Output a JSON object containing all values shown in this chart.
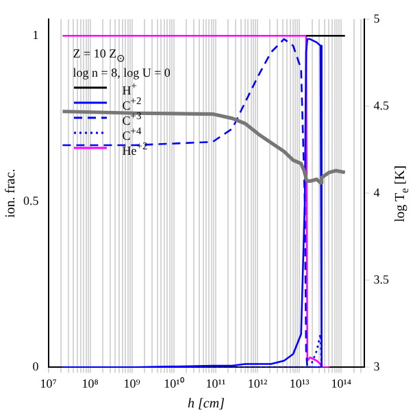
{
  "chart_data": {
    "type": "line",
    "xlabel": "h [cm]",
    "ylabel": "ion. frac.",
    "y2label": "log T$_{e}$ [K]",
    "log": "x",
    "grid": "x",
    "legend": "top left",
    "line_style": "solid",
    "marker": "none",
    "annotations": [
      "Z = 10 Z$_{⊙}$",
      "log n = 8, log U = 0"
    ],
    "x": [
      22000000.0,
      1200000000.0,
      85000000000.0,
      250000000000.0,
      510000000000.0,
      1050000000000.0,
      2100000000000.0,
      4300000000000.0,
      7100000000000.0,
      11000000000000.0,
      13500000000000.0,
      14500000000000.0,
      15500000000000.0,
      18000000000000.0,
      26000000000000.0,
      32000000000000.0,
      34000000000000.0,
      52000000000000.0,
      74000000000000.0,
      123000000000000.0
    ],
    "xlim": [
      10000000.0,
      350000000000000.0
    ],
    "xticks": [
      {
        "value": 10000000.0,
        "label": "10⁷"
      },
      {
        "value": 20000000.0,
        "label": null
      },
      {
        "value": 30000000.0,
        "label": null
      },
      {
        "value": 40000000.0,
        "label": null
      },
      {
        "value": 50000000.0,
        "label": null
      },
      {
        "value": 60000000.0,
        "label": null
      },
      {
        "value": 70000000.0,
        "label": null
      },
      {
        "value": 80000000.0,
        "label": null
      },
      {
        "value": 90000000.0,
        "label": null
      },
      {
        "value": 100000000.0,
        "label": "10⁸"
      },
      {
        "value": 200000000.0,
        "label": null
      },
      {
        "value": 300000000.0,
        "label": null
      },
      {
        "value": 400000000.0,
        "label": null
      },
      {
        "value": 500000000.0,
        "label": null
      },
      {
        "value": 600000000.0,
        "label": null
      },
      {
        "value": 700000000.0,
        "label": null
      },
      {
        "value": 800000000.0,
        "label": null
      },
      {
        "value": 900000000.0,
        "label": null
      },
      {
        "value": 1000000000.0,
        "label": "10⁹"
      },
      {
        "value": 2000000000.0,
        "label": null
      },
      {
        "value": 3000000000.0,
        "label": null
      },
      {
        "value": 4000000000.0,
        "label": null
      },
      {
        "value": 5000000000.0,
        "label": null
      },
      {
        "value": 6000000000.0,
        "label": null
      },
      {
        "value": 7000000000.0,
        "label": null
      },
      {
        "value": 8000000000.0,
        "label": null
      },
      {
        "value": 9000000000.0,
        "label": null
      },
      {
        "value": 10000000000.0,
        "label": "10¹⁰"
      },
      {
        "value": 20000000000.0,
        "label": null
      },
      {
        "value": 30000000000.0,
        "label": null
      },
      {
        "value": 40000000000.0,
        "label": null
      },
      {
        "value": 50000000000.0,
        "label": null
      },
      {
        "value": 60000000000.0,
        "label": null
      },
      {
        "value": 70000000000.0,
        "label": null
      },
      {
        "value": 80000000000.0,
        "label": null
      },
      {
        "value": 90000000000.0,
        "label": null
      },
      {
        "value": 100000000000.0,
        "label": "10¹¹"
      },
      {
        "value": 200000000000.0,
        "label": null
      },
      {
        "value": 300000000000.0,
        "label": null
      },
      {
        "value": 400000000000.0,
        "label": null
      },
      {
        "value": 500000000000.0,
        "label": null
      },
      {
        "value": 600000000000.0,
        "label": null
      },
      {
        "value": 700000000000.0,
        "label": null
      },
      {
        "value": 800000000000.0,
        "label": null
      },
      {
        "value": 900000000000.0,
        "label": null
      },
      {
        "value": 1000000000000.0,
        "label": "10¹²"
      },
      {
        "value": 2000000000000.0,
        "label": null
      },
      {
        "value": 3000000000000.0,
        "label": null
      },
      {
        "value": 4000000000000.0,
        "label": null
      },
      {
        "value": 5000000000000.0,
        "label": null
      },
      {
        "value": 6000000000000.0,
        "label": null
      },
      {
        "value": 7000000000000.0,
        "label": null
      },
      {
        "value": 8000000000000.0,
        "label": null
      },
      {
        "value": 9000000000000.0,
        "label": null
      },
      {
        "value": 10000000000000.0,
        "label": "10¹³"
      },
      {
        "value": 20000000000000.0,
        "label": null
      },
      {
        "value": 30000000000000.0,
        "label": null
      },
      {
        "value": 40000000000000.0,
        "label": null
      },
      {
        "value": 50000000000000.0,
        "label": null
      },
      {
        "value": 60000000000000.0,
        "label": null
      },
      {
        "value": 70000000000000.0,
        "label": null
      },
      {
        "value": 80000000000000.0,
        "label": null
      },
      {
        "value": 90000000000000.0,
        "label": null
      },
      {
        "value": 100000000000000.0,
        "label": "10¹⁴"
      },
      {
        "value": 200000000000000.0,
        "label": null
      },
      {
        "value": 300000000000000.0,
        "label": null
      }
    ],
    "ylim": [
      0,
      1.05
    ],
    "yticks": [
      0,
      0.5,
      1
    ],
    "y2lim": [
      3,
      5
    ],
    "y2ticks": [
      3,
      3.5,
      4,
      4.5,
      5
    ],
    "series": [
      {
        "name": "H$^{+}$",
        "color": "#000000",
        "values": [
          null,
          null,
          null,
          null,
          null,
          null,
          null,
          null,
          null,
          null,
          null,
          1,
          1,
          1,
          1,
          1,
          1,
          1,
          1,
          1
        ]
      },
      {
        "name": "C$^{+2}$",
        "color": "#0000ff",
        "values": [
          0,
          0,
          0.005,
          0.005,
          0.01,
          0.01,
          0.01,
          0.02,
          0.04,
          0.1,
          0.5,
          0.95,
          0.99,
          0.99,
          0.98,
          0.97,
          0,
          null,
          null,
          null
        ]
      },
      {
        "name": "C$^{+3}$",
        "color": "#0000ff",
        "line_style": "dashed",
        "values": [
          0.67,
          0.67,
          0.68,
          0.72,
          0.8,
          0.88,
          0.95,
          0.99,
          0.97,
          0.9,
          0.5,
          0.05,
          0,
          0,
          0,
          0,
          0,
          null,
          null,
          null
        ]
      },
      {
        "name": "C$^{+4}$",
        "color": "#0000ff",
        "line_style": "dotted",
        "values": [
          0,
          0,
          0,
          0,
          0,
          0,
          0,
          0,
          0,
          0,
          0,
          0,
          0,
          0,
          0.05,
          0.1,
          0,
          null,
          null,
          null
        ]
      },
      {
        "name": "He$^{+2}$",
        "color": "#ff00ff",
        "values": [
          1,
          1,
          1,
          1,
          1,
          1,
          1,
          1,
          1,
          1,
          1,
          1,
          0.02,
          0.03,
          0.02,
          0.01,
          0,
          0,
          null,
          null
        ]
      },
      {
        "color": "#777777",
        "axis": "y2",
        "values": [
          4.47,
          4.46,
          4.455,
          4.43,
          4.4,
          4.34,
          4.29,
          4.24,
          4.19,
          4.17,
          4.12,
          4.08,
          4.07,
          4.07,
          4.08,
          4.06,
          4.09,
          4.12,
          4.13,
          4.12
        ]
      }
    ]
  }
}
